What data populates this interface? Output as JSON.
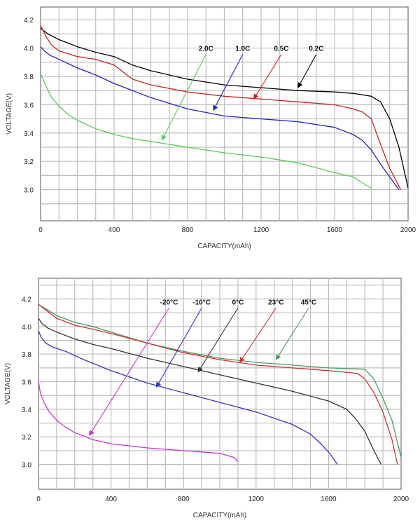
{
  "chart_data": [
    {
      "type": "line",
      "xlabel": "CAPACITY(mAh)",
      "ylabel": "VOLTAGE(V)",
      "xlim": [
        0,
        2000
      ],
      "ylim": [
        2.78,
        4.29
      ],
      "x_ticks": [
        "0",
        "400",
        "800",
        "1200",
        "1600",
        "2000"
      ],
      "y_ticks": [
        "3.0",
        "3.2",
        "3.4",
        "3.6",
        "3.8",
        "4.0",
        "4.2"
      ],
      "grid": true,
      "series": [
        {
          "name": "0.2C",
          "color": "#000000",
          "x": [
            0,
            40,
            100,
            200,
            300,
            400,
            500,
            600,
            800,
            1000,
            1200,
            1400,
            1600,
            1700,
            1800,
            1850,
            1900,
            1950,
            2000
          ],
          "y": [
            4.14,
            4.1,
            4.06,
            4.01,
            3.97,
            3.94,
            3.88,
            3.84,
            3.78,
            3.74,
            3.72,
            3.7,
            3.69,
            3.68,
            3.66,
            3.62,
            3.5,
            3.3,
            3.01
          ]
        },
        {
          "name": "0.5C",
          "color": "#cc2222",
          "x": [
            0,
            30,
            60,
            100,
            200,
            300,
            400,
            500,
            600,
            800,
            1000,
            1200,
            1400,
            1600,
            1700,
            1750,
            1800,
            1850,
            1900,
            1960
          ],
          "y": [
            4.16,
            4.08,
            4.02,
            3.98,
            3.94,
            3.92,
            3.88,
            3.78,
            3.74,
            3.69,
            3.66,
            3.64,
            3.62,
            3.6,
            3.57,
            3.55,
            3.5,
            3.32,
            3.15,
            3.0
          ]
        },
        {
          "name": "1.0C",
          "color": "#2222bb",
          "x": [
            0,
            20,
            50,
            100,
            200,
            300,
            400,
            500,
            600,
            800,
            1000,
            1200,
            1400,
            1600,
            1700,
            1750,
            1800,
            1850,
            1900,
            1950
          ],
          "y": [
            4.01,
            3.98,
            3.95,
            3.92,
            3.86,
            3.81,
            3.75,
            3.7,
            3.65,
            3.57,
            3.52,
            3.5,
            3.48,
            3.44,
            3.39,
            3.35,
            3.28,
            3.18,
            3.09,
            3.0
          ]
        },
        {
          "name": "2.0C",
          "color": "#55cc55",
          "x": [
            0,
            30,
            60,
            100,
            150,
            200,
            300,
            400,
            500,
            600,
            800,
            1000,
            1200,
            1400,
            1600,
            1700,
            1750,
            1800
          ],
          "y": [
            3.82,
            3.73,
            3.65,
            3.59,
            3.53,
            3.49,
            3.43,
            3.39,
            3.36,
            3.34,
            3.3,
            3.26,
            3.23,
            3.19,
            3.12,
            3.09,
            3.05,
            3.01
          ]
        }
      ],
      "annotations": [
        {
          "label": "2.0C",
          "color": "#55cc55",
          "text_x": 900,
          "text_y": 3.98,
          "arrow_x": 660,
          "arrow_y": 3.35
        },
        {
          "label": "1.0C",
          "color": "#2222bb",
          "text_x": 1100,
          "text_y": 3.98,
          "arrow_x": 940,
          "arrow_y": 3.56
        },
        {
          "label": "0.5C",
          "color": "#cc2222",
          "text_x": 1310,
          "text_y": 3.98,
          "arrow_x": 1160,
          "arrow_y": 3.64
        },
        {
          "label": "0.2C",
          "color": "#000000",
          "text_x": 1500,
          "text_y": 3.98,
          "arrow_x": 1400,
          "arrow_y": 3.72
        }
      ]
    },
    {
      "type": "line",
      "xlabel": "CAPACITY(mAh)",
      "ylabel": "VOLTAGE(V)",
      "xlim": [
        0,
        2000
      ],
      "ylim": [
        2.82,
        4.35
      ],
      "x_ticks": [
        "0",
        "400",
        "800",
        "1200",
        "1600",
        "2000"
      ],
      "y_ticks": [
        "3.0",
        "3.2",
        "3.4",
        "3.6",
        "3.8",
        "4.0",
        "4.2"
      ],
      "grid": true,
      "series": [
        {
          "name": "45°C",
          "color": "#4a9a5a",
          "x": [
            0,
            50,
            100,
            200,
            300,
            400,
            500,
            600,
            800,
            1000,
            1200,
            1400,
            1600,
            1800,
            1850,
            1900,
            1950,
            2000
          ],
          "y": [
            4.16,
            4.12,
            4.08,
            4.03,
            4.0,
            3.96,
            3.92,
            3.88,
            3.82,
            3.77,
            3.74,
            3.72,
            3.7,
            3.69,
            3.62,
            3.48,
            3.32,
            3.05
          ]
        },
        {
          "name": "23°C",
          "color": "#cc3333",
          "x": [
            0,
            50,
            100,
            200,
            300,
            400,
            600,
            800,
            1000,
            1200,
            1400,
            1600,
            1760,
            1800,
            1850,
            1900,
            1950,
            1980
          ],
          "y": [
            4.16,
            4.11,
            4.06,
            4.01,
            3.98,
            3.95,
            3.88,
            3.81,
            3.76,
            3.72,
            3.7,
            3.68,
            3.66,
            3.62,
            3.52,
            3.38,
            3.18,
            3.0
          ]
        },
        {
          "name": "0°C",
          "color": "#333333",
          "x": [
            0,
            20,
            50,
            100,
            200,
            300,
            400,
            600,
            800,
            1000,
            1200,
            1400,
            1600,
            1700,
            1750,
            1800,
            1850,
            1890
          ],
          "y": [
            4.06,
            4.02,
            3.99,
            3.96,
            3.91,
            3.87,
            3.84,
            3.77,
            3.71,
            3.65,
            3.59,
            3.53,
            3.46,
            3.4,
            3.33,
            3.24,
            3.1,
            3.0
          ]
        },
        {
          "name": "-10°C",
          "color": "#3333bb",
          "x": [
            0,
            15,
            40,
            80,
            150,
            250,
            400,
            600,
            800,
            1000,
            1200,
            1400,
            1500,
            1550,
            1600,
            1650
          ],
          "y": [
            3.97,
            3.92,
            3.88,
            3.85,
            3.82,
            3.76,
            3.68,
            3.59,
            3.52,
            3.45,
            3.38,
            3.29,
            3.22,
            3.16,
            3.09,
            3.0
          ]
        },
        {
          "name": "-20°C",
          "color": "#cc33cc",
          "x": [
            0,
            10,
            30,
            60,
            100,
            150,
            200,
            300,
            400,
            600,
            800,
            1000,
            1080,
            1100
          ],
          "y": [
            3.6,
            3.52,
            3.45,
            3.38,
            3.32,
            3.27,
            3.23,
            3.18,
            3.15,
            3.12,
            3.1,
            3.08,
            3.05,
            3.02
          ]
        }
      ],
      "annotations": [
        {
          "label": "-20°C",
          "color": "#cc33cc",
          "text_x": 720,
          "text_y": 4.16,
          "arrow_x": 280,
          "arrow_y": 3.21
        },
        {
          "label": "-10°C",
          "color": "#3333bb",
          "text_x": 900,
          "text_y": 4.16,
          "arrow_x": 650,
          "arrow_y": 3.56
        },
        {
          "label": "0°C",
          "color": "#333333",
          "text_x": 1100,
          "text_y": 4.16,
          "arrow_x": 880,
          "arrow_y": 3.67
        },
        {
          "label": "23°C",
          "color": "#cc3333",
          "text_x": 1310,
          "text_y": 4.16,
          "arrow_x": 1110,
          "arrow_y": 3.74
        },
        {
          "label": "45°C",
          "color": "#4a9a5a",
          "text_x": 1490,
          "text_y": 4.16,
          "arrow_x": 1310,
          "arrow_y": 3.76
        }
      ]
    }
  ]
}
